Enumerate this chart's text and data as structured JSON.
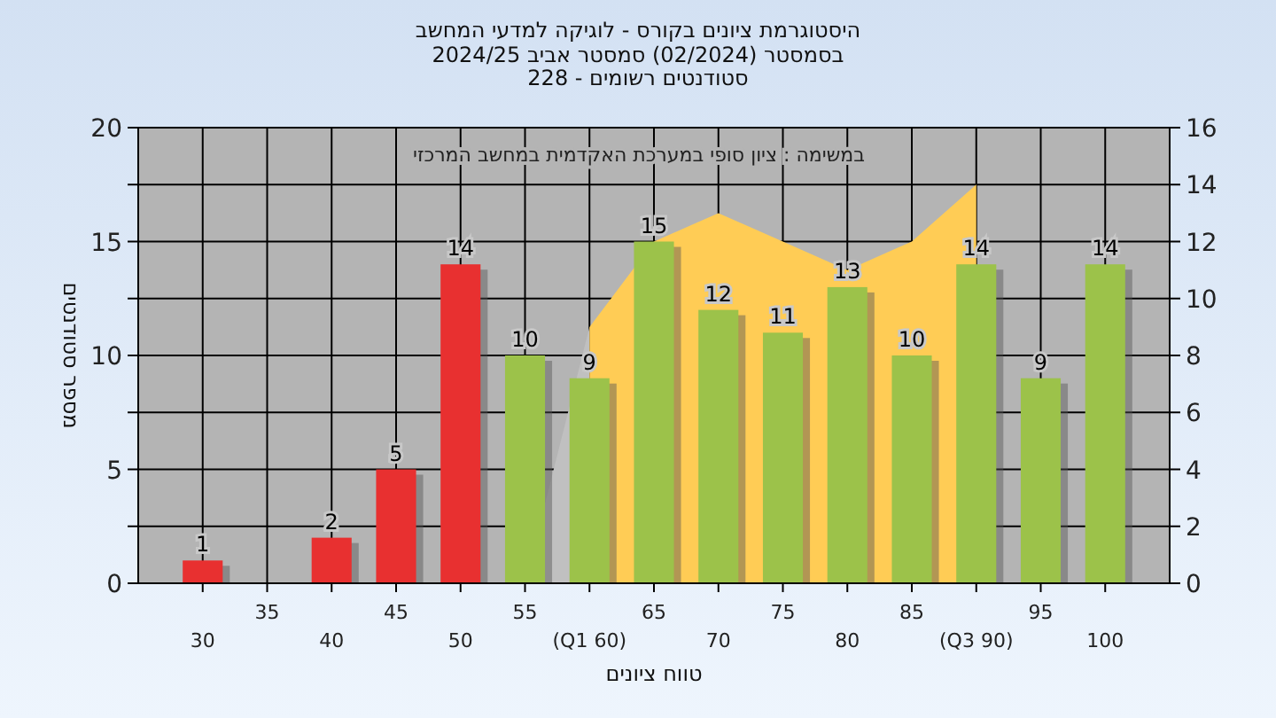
{
  "chart_data": {
    "type": "bar",
    "title": "היסטוגרמת ציונים בקורס - לוגיקה למדעי המחשב",
    "subtitle": "בסמסטר  (02/2024)  סמסטר אביב 2024/25\nסטודנטים רשומים - 228",
    "xlabel": "טווח ציונים",
    "ylabel": "מספר סטודנטים",
    "annotations": [
      "במשימה : ציון סופי במערכת האקדמית במחשב המרכזי"
    ],
    "categories": [
      "30",
      "35",
      "40",
      "45",
      "50",
      "55",
      "(Q1 60)",
      "65",
      "70",
      "75",
      "80",
      "85",
      "(Q3 90)",
      "95",
      "100"
    ],
    "series": [
      {
        "type": "area",
        "axis": "y2",
        "color": "#c0c0c0",
        "values": [
          null,
          null,
          null,
          null,
          null,
          0,
          9,
          null,
          null,
          null,
          null,
          null,
          null,
          null,
          null
        ]
      },
      {
        "type": "area",
        "axis": "y2",
        "color": "#ffcc55",
        "values": [
          null,
          null,
          null,
          null,
          null,
          null,
          9,
          12,
          13,
          12,
          11,
          12,
          14,
          null,
          null
        ]
      },
      {
        "colors": [
          "#e83030",
          null,
          "#e83030",
          "#e83030",
          "#e83030",
          "#9cc24a",
          "#9cc24a",
          "#9cc24a",
          "#9cc24a",
          "#9cc24a",
          "#9cc24a",
          "#9cc24a",
          "#9cc24a",
          "#9cc24a",
          "#9cc24a"
        ],
        "values": [
          1,
          null,
          2,
          5,
          14,
          10,
          9,
          15,
          12,
          11,
          13,
          10,
          14,
          9,
          14
        ],
        "value_labels": [
          "1",
          null,
          "2",
          "5",
          "14",
          "10",
          "9",
          "15",
          "12",
          "11",
          "13",
          "10",
          "14",
          "9",
          "14"
        ]
      }
    ],
    "ylim": [
      0,
      20
    ],
    "yticks": [
      0,
      {
        "value": 2.5,
        "label": null
      },
      5,
      {
        "value": 7.5,
        "label": null
      },
      10,
      {
        "value": 12.5,
        "label": null
      },
      15,
      {
        "value": 17.5,
        "label": null
      },
      20
    ],
    "y2lim": [
      0,
      16
    ],
    "y2ticks": [
      0,
      2,
      4,
      6,
      8,
      10,
      12,
      14,
      16
    ],
    "grid": true
  }
}
